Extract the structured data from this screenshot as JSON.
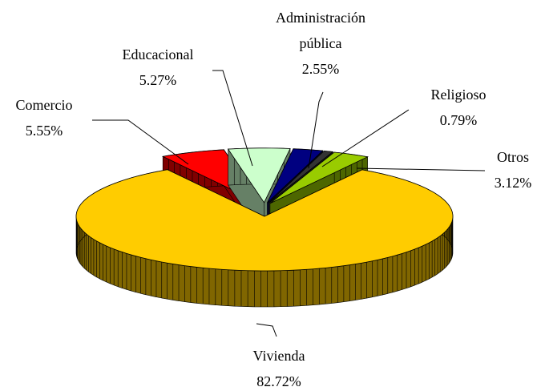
{
  "chart_data": {
    "type": "pie",
    "categories": [
      "Vivienda",
      "Comercio",
      "Educacional",
      "Administración pública",
      "Religioso",
      "Otros"
    ],
    "values": [
      82.72,
      5.55,
      5.27,
      2.55,
      0.79,
      3.12
    ],
    "value_labels": [
      "82.72%",
      "5.55%",
      "5.27%",
      "2.55%",
      "0.79%",
      "3.12%"
    ],
    "colors": [
      "#ffcc00",
      "#ff0000",
      "#ccffcc",
      "#000080",
      "#333333",
      "#99cc00"
    ]
  }
}
